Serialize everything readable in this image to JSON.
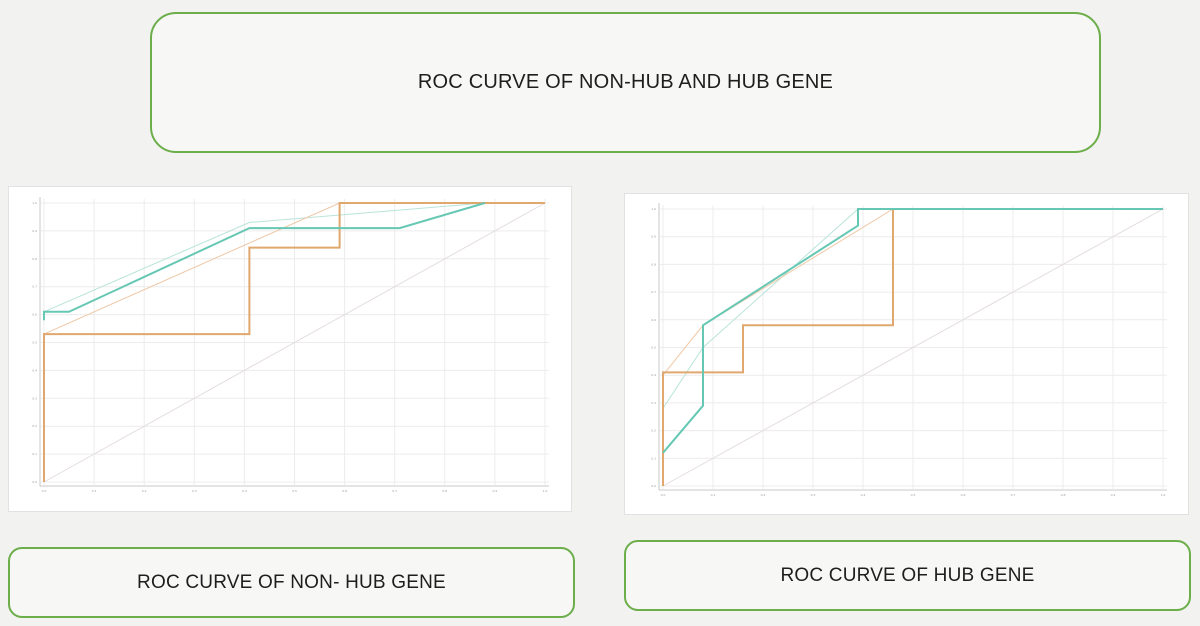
{
  "main_title": "ROC CURVE OF NON-HUB AND HUB GENE",
  "captions": {
    "left": "ROC CURVE OF NON- HUB GENE",
    "right": "ROC CURVE OF HUB GENE"
  },
  "colors": {
    "box_border": "#6cae4a",
    "teal": "#66c8b4",
    "orange": "#e0a76e",
    "light_orange": "#efc8a6",
    "light_teal": "#b9e4da",
    "diagonal": "#e4dedd",
    "grid": "#ececec",
    "axis": "#c8c8c8"
  },
  "chart_data": [
    {
      "type": "line",
      "xlim": [
        0,
        1
      ],
      "ylim": [
        0,
        1
      ],
      "grid": true,
      "x_ticks": [
        0,
        0.1,
        0.2,
        0.3,
        0.4,
        0.5,
        0.6,
        0.7,
        0.8,
        0.9,
        1.0
      ],
      "y_ticks": [
        0,
        0.1,
        0.2,
        0.3,
        0.4,
        0.5,
        0.6,
        0.7,
        0.8,
        0.9,
        1.0
      ],
      "series": [
        {
          "style": "teal",
          "x": [
            0,
            0.0,
            0.05,
            0.41,
            0.71,
            0.88
          ],
          "y": [
            0.58,
            0.61,
            0.61,
            0.91,
            0.91,
            1.0
          ]
        },
        {
          "style": "light_teal",
          "x": [
            0,
            0.41,
            0.88
          ],
          "y": [
            0.61,
            0.93,
            1.0
          ]
        },
        {
          "style": "light_orange",
          "x": [
            0,
            0.59,
            1.0
          ],
          "y": [
            0.53,
            1.0,
            1.0
          ]
        },
        {
          "style": "orange",
          "x": [
            0,
            0,
            0.41,
            0.41,
            0.59,
            0.59,
            1.0
          ],
          "y": [
            0,
            0.53,
            0.53,
            0.84,
            0.84,
            1.0,
            1.0
          ]
        },
        {
          "style": "diagonal",
          "x": [
            0,
            1
          ],
          "y": [
            0,
            1
          ]
        }
      ]
    },
    {
      "type": "line",
      "xlim": [
        0,
        1
      ],
      "ylim": [
        0,
        1
      ],
      "grid": true,
      "x_ticks": [
        0,
        0.1,
        0.2,
        0.3,
        0.4,
        0.5,
        0.6,
        0.7,
        0.8,
        0.9,
        1.0
      ],
      "y_ticks": [
        0,
        0.1,
        0.2,
        0.3,
        0.4,
        0.5,
        0.6,
        0.7,
        0.8,
        0.9,
        1.0
      ],
      "series": [
        {
          "style": "teal",
          "x": [
            0,
            0.08,
            0.08,
            0.39,
            0.39,
            1.0
          ],
          "y": [
            0.12,
            0.29,
            0.58,
            0.94,
            1.0,
            1.0
          ]
        },
        {
          "style": "light_teal",
          "x": [
            0,
            0.08,
            0.39,
            1.0
          ],
          "y": [
            0.28,
            0.5,
            1.0,
            1.0
          ]
        },
        {
          "style": "light_orange",
          "x": [
            0,
            0.08,
            0.46,
            1.0
          ],
          "y": [
            0.4,
            0.58,
            1.0,
            1.0
          ]
        },
        {
          "style": "orange",
          "x": [
            0,
            0,
            0.16,
            0.16,
            0.46,
            0.46,
            1.0
          ],
          "y": [
            0,
            0.41,
            0.41,
            0.58,
            0.58,
            1.0,
            1.0
          ]
        },
        {
          "style": "diagonal",
          "x": [
            0,
            1
          ],
          "y": [
            0,
            1
          ]
        }
      ]
    }
  ]
}
